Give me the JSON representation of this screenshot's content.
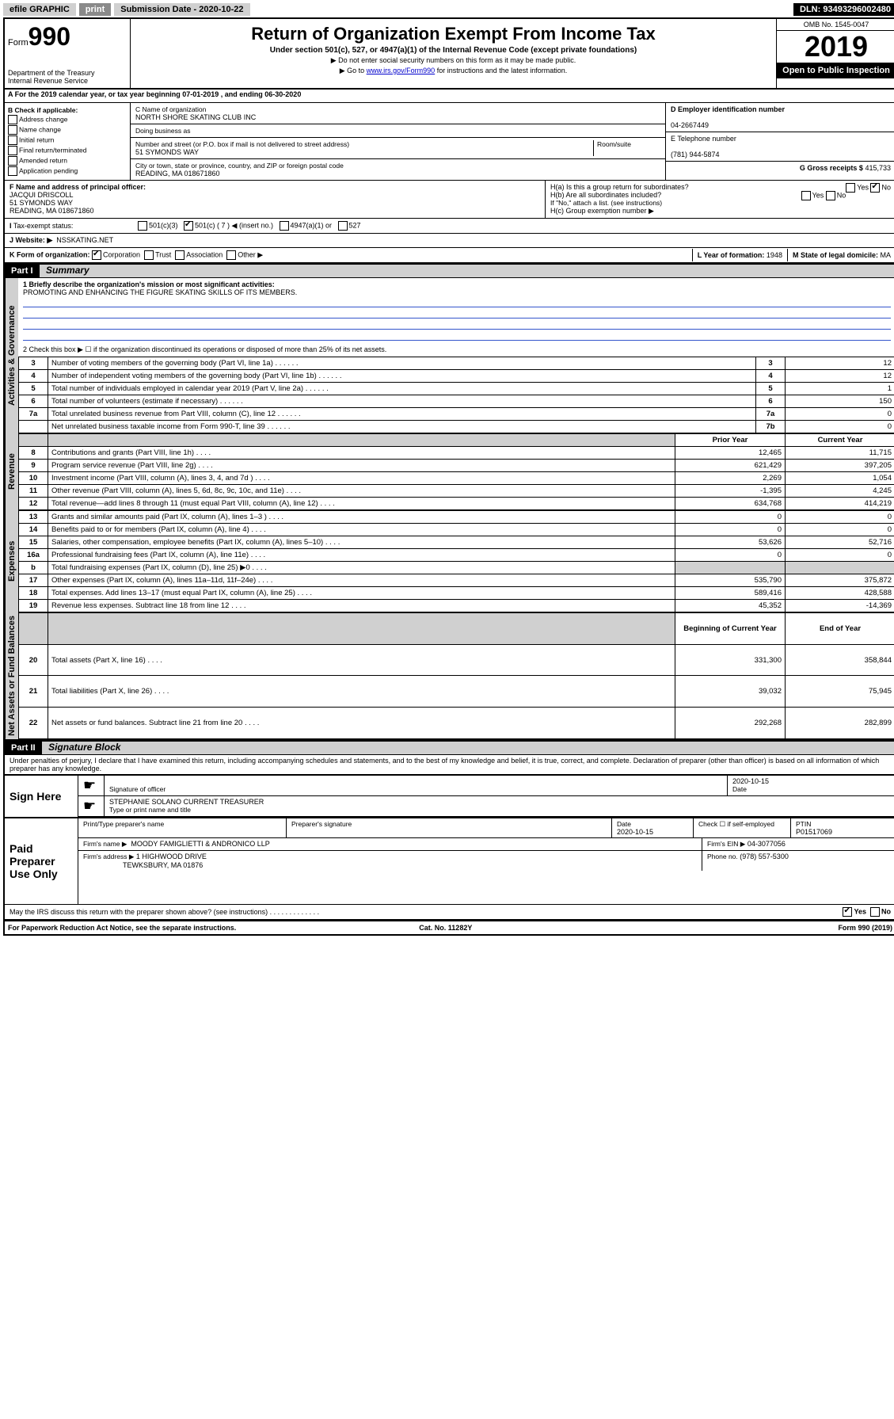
{
  "topbar": {
    "efile": "efile GRAPHIC",
    "print": "print",
    "sub_label": "Submission Date - 2020-10-22",
    "dln": "DLN: 93493296002480"
  },
  "header": {
    "form_prefix": "Form",
    "form_no": "990",
    "dept": "Department of the Treasury\nInternal Revenue Service",
    "title": "Return of Organization Exempt From Income Tax",
    "subtitle": "Under section 501(c), 527, or 4947(a)(1) of the Internal Revenue Code (except private foundations)",
    "note1": "▶ Do not enter social security numbers on this form as it may be made public.",
    "note2_pre": "▶ Go to ",
    "note2_link": "www.irs.gov/Form990",
    "note2_post": " for instructions and the latest information.",
    "omb": "OMB No. 1545-0047",
    "year": "2019",
    "open": "Open to Public Inspection"
  },
  "period": {
    "text": "A For the 2019 calendar year, or tax year beginning 07-01-2019    , and ending 06-30-2020"
  },
  "boxB": {
    "label": "B Check if applicable:",
    "opts": [
      "Address change",
      "Name change",
      "Initial return",
      "Final return/terminated",
      "Amended return",
      "Application pending"
    ]
  },
  "boxC": {
    "name_label": "C Name of organization",
    "name": "NORTH SHORE SKATING CLUB INC",
    "dba_label": "Doing business as",
    "dba": "",
    "addr_label": "Number and street (or P.O. box if mail is not delivered to street address)",
    "room_label": "Room/suite",
    "addr": "51 SYMONDS WAY",
    "city_label": "City or town, state or province, country, and ZIP or foreign postal code",
    "city": "READING, MA  018671860"
  },
  "boxD": {
    "label": "D Employer identification number",
    "val": "04-2667449"
  },
  "boxE": {
    "label": "E Telephone number",
    "val": "(781) 944-5874"
  },
  "boxG": {
    "label": "G Gross receipts $",
    "val": "415,733"
  },
  "boxF": {
    "label": "F Name and address of principal officer:",
    "name": "JACQUI DRISCOLL",
    "addr1": "51 SYMONDS WAY",
    "addr2": "READING, MA  018671860"
  },
  "boxH": {
    "a": "H(a)  Is this a group return for subordinates?",
    "a_yes": "Yes",
    "a_no": "No",
    "b": "H(b)  Are all subordinates included?",
    "b_note": "If \"No,\" attach a list. (see instructions)",
    "c": "H(c)  Group exemption number ▶"
  },
  "boxI": {
    "label": "Tax-exempt status:",
    "c3": "501(c)(3)",
    "c_other": "501(c) ( 7 ) ◀ (insert no.)",
    "a1": "4947(a)(1) or",
    "s527": "527"
  },
  "boxJ": {
    "label": "J   Website: ▶",
    "val": "NSSKATING.NET"
  },
  "boxK": {
    "label": "K Form of organization:",
    "corp": "Corporation",
    "trust": "Trust",
    "assoc": "Association",
    "other": "Other ▶"
  },
  "boxL": {
    "label": "L Year of formation:",
    "val": "1948"
  },
  "boxM": {
    "label": "M State of legal domicile:",
    "val": "MA"
  },
  "part1": {
    "hdr": "Part I",
    "title": "Summary",
    "l1_label": "1  Briefly describe the organization's mission or most significant activities:",
    "l1_val": "PROMOTING AND ENHANCING THE FIGURE SKATING SKILLS OF ITS MEMBERS.",
    "l2": "2   Check this box ▶ ☐  if the organization discontinued its operations or disposed of more than 25% of its net assets.",
    "vlabels": {
      "gov": "Activities & Governance",
      "rev": "Revenue",
      "exp": "Expenses",
      "net": "Net Assets or Fund Balances"
    },
    "gov_rows": [
      {
        "n": "3",
        "t": "Number of voting members of the governing body (Part VI, line 1a)",
        "box": "3",
        "v": "12"
      },
      {
        "n": "4",
        "t": "Number of independent voting members of the governing body (Part VI, line 1b)",
        "box": "4",
        "v": "12"
      },
      {
        "n": "5",
        "t": "Total number of individuals employed in calendar year 2019 (Part V, line 2a)",
        "box": "5",
        "v": "1"
      },
      {
        "n": "6",
        "t": "Total number of volunteers (estimate if necessary)",
        "box": "6",
        "v": "150"
      },
      {
        "n": "7a",
        "t": "Total unrelated business revenue from Part VIII, column (C), line 12",
        "box": "7a",
        "v": "0"
      },
      {
        "n": "",
        "t": "Net unrelated business taxable income from Form 990-T, line 39",
        "box": "7b",
        "v": "0"
      }
    ],
    "col_prior": "Prior Year",
    "col_current": "Current Year",
    "rev_rows": [
      {
        "n": "8",
        "t": "Contributions and grants (Part VIII, line 1h)",
        "p": "12,465",
        "c": "11,715"
      },
      {
        "n": "9",
        "t": "Program service revenue (Part VIII, line 2g)",
        "p": "621,429",
        "c": "397,205"
      },
      {
        "n": "10",
        "t": "Investment income (Part VIII, column (A), lines 3, 4, and 7d )",
        "p": "2,269",
        "c": "1,054"
      },
      {
        "n": "11",
        "t": "Other revenue (Part VIII, column (A), lines 5, 6d, 8c, 9c, 10c, and 11e)",
        "p": "-1,395",
        "c": "4,245"
      },
      {
        "n": "12",
        "t": "Total revenue—add lines 8 through 11 (must equal Part VIII, column (A), line 12)",
        "p": "634,768",
        "c": "414,219"
      }
    ],
    "exp_rows": [
      {
        "n": "13",
        "t": "Grants and similar amounts paid (Part IX, column (A), lines 1–3 )",
        "p": "0",
        "c": "0"
      },
      {
        "n": "14",
        "t": "Benefits paid to or for members (Part IX, column (A), line 4)",
        "p": "0",
        "c": "0"
      },
      {
        "n": "15",
        "t": "Salaries, other compensation, employee benefits (Part IX, column (A), lines 5–10)",
        "p": "53,626",
        "c": "52,716"
      },
      {
        "n": "16a",
        "t": "Professional fundraising fees (Part IX, column (A), line 11e)",
        "p": "0",
        "c": "0"
      },
      {
        "n": "b",
        "t": "Total fundraising expenses (Part IX, column (D), line 25) ▶0",
        "p": "shade",
        "c": "shade"
      },
      {
        "n": "17",
        "t": "Other expenses (Part IX, column (A), lines 11a–11d, 11f–24e)",
        "p": "535,790",
        "c": "375,872"
      },
      {
        "n": "18",
        "t": "Total expenses. Add lines 13–17 (must equal Part IX, column (A), line 25)",
        "p": "589,416",
        "c": "428,588"
      },
      {
        "n": "19",
        "t": "Revenue less expenses. Subtract line 18 from line 12",
        "p": "45,352",
        "c": "-14,369"
      }
    ],
    "col_begin": "Beginning of Current Year",
    "col_end": "End of Year",
    "net_rows": [
      {
        "n": "20",
        "t": "Total assets (Part X, line 16)",
        "p": "331,300",
        "c": "358,844"
      },
      {
        "n": "21",
        "t": "Total liabilities (Part X, line 26)",
        "p": "39,032",
        "c": "75,945"
      },
      {
        "n": "22",
        "t": "Net assets or fund balances. Subtract line 21 from line 20",
        "p": "292,268",
        "c": "282,899"
      }
    ]
  },
  "part2": {
    "hdr": "Part II",
    "title": "Signature Block",
    "decl": "Under penalties of perjury, I declare that I have examined this return, including accompanying schedules and statements, and to the best of my knowledge and belief, it is true, correct, and complete. Declaration of preparer (other than officer) is based on all information of which preparer has any knowledge.",
    "sign_here": "Sign Here",
    "sig_officer": "Signature of officer",
    "sig_date": "2020-10-15",
    "date_label": "Date",
    "typed_name": "STEPHANIE SOLANO  CURRENT TREASURER",
    "typed_label": "Type or print name and title",
    "paid": "Paid Preparer Use Only",
    "prep_name_label": "Print/Type preparer's name",
    "prep_sig_label": "Preparer's signature",
    "prep_date_label": "Date",
    "prep_date": "2020-10-15",
    "check_self": "Check ☐ if self-employed",
    "ptin_label": "PTIN",
    "ptin": "P01517069",
    "firm_name_label": "Firm's name      ▶",
    "firm_name": "MOODY FAMIGLIETTI & ANDRONICO LLP",
    "firm_ein_label": "Firm's EIN ▶",
    "firm_ein": "04-3077056",
    "firm_addr_label": "Firm's address ▶",
    "firm_addr1": "1 HIGHWOOD DRIVE",
    "firm_addr2": "TEWKSBURY, MA  01876",
    "phone_label": "Phone no.",
    "phone": "(978) 557-5300",
    "discuss": "May the IRS discuss this return with the preparer shown above? (see instructions)",
    "yes": "Yes",
    "no": "No"
  },
  "footer": {
    "pra": "For Paperwork Reduction Act Notice, see the separate instructions.",
    "cat": "Cat. No. 11282Y",
    "form": "Form 990 (2019)"
  }
}
